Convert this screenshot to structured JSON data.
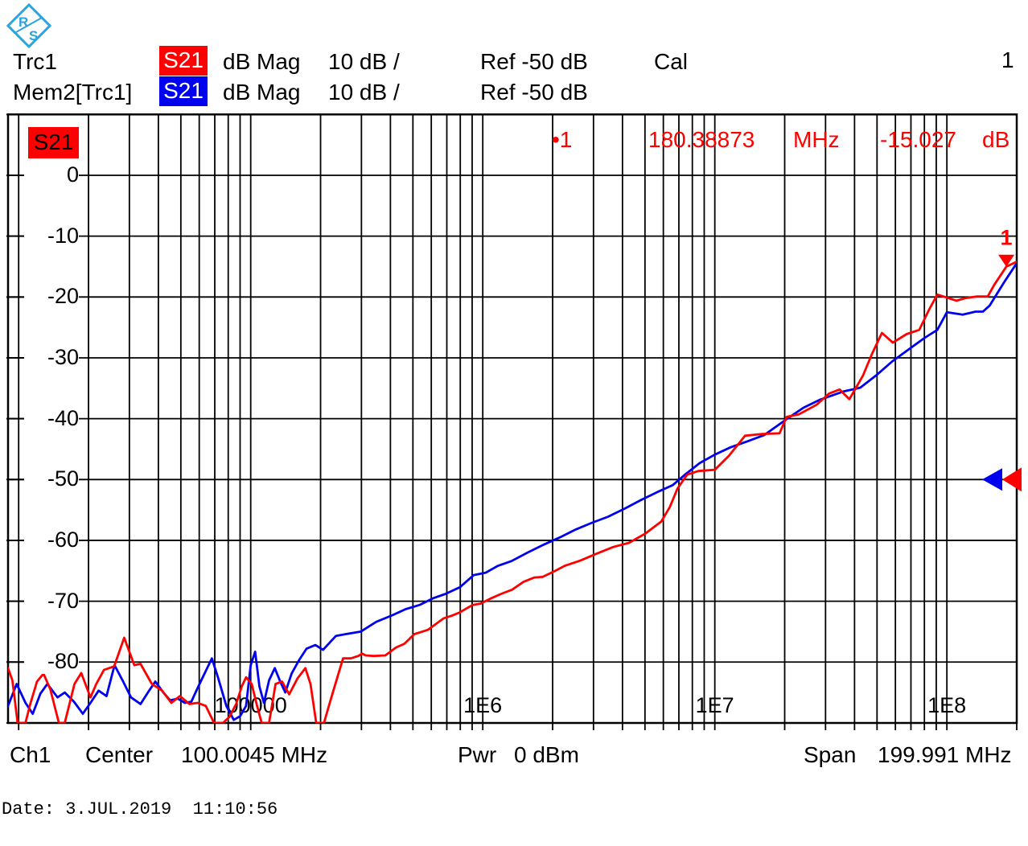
{
  "logo": {
    "name": "rohde-schwarz-logo",
    "color": "#2aa4dc"
  },
  "header": {
    "window_number": "1",
    "traces": [
      {
        "label": "Trc1",
        "channel": "S21",
        "badge_bg": "#ff0000",
        "format": "dB Mag",
        "scale": "10 dB /",
        "ref": "Ref -50 dB",
        "cal": "Cal"
      },
      {
        "label": "Mem2[Trc1]",
        "channel": "S21",
        "badge_bg": "#0000f0",
        "format": "dB Mag",
        "scale": "10 dB /",
        "ref": "Ref -50 dB",
        "cal": ""
      }
    ]
  },
  "trace_badge": {
    "label": "S21",
    "bg": "#ff0000"
  },
  "marker_readout": {
    "marker_label": "•1",
    "frequency": "180.38873",
    "freq_unit": "MHz",
    "value": "-15.027",
    "value_unit": "dB",
    "color": "#ff0000"
  },
  "footer": {
    "channel": "Ch1",
    "center_label": "Center",
    "center_value": "100.0045 MHz",
    "power_label": "Pwr",
    "power_value": "0 dBm",
    "span_label": "Span",
    "span_value": "199.991 MHz"
  },
  "date_line": "Date: 3.JUL.2019  11:10:56",
  "chart_data": {
    "type": "line",
    "title": "",
    "x_axis": {
      "scale": "log",
      "unit": "Hz",
      "min": 9000,
      "max": 200000000,
      "decade_labels": [
        {
          "value": 100000,
          "label": "100000"
        },
        {
          "value": 1000000,
          "label": "1E6"
        },
        {
          "value": 10000000,
          "label": "1E7"
        },
        {
          "value": 100000000,
          "label": "1E8"
        }
      ]
    },
    "y_axis": {
      "unit": "dB",
      "min": -90,
      "max": 10,
      "step": 10,
      "ref": -50,
      "tick_labels": [
        "0",
        "-10",
        "-20",
        "-30",
        "-40",
        "-50",
        "-60",
        "-70",
        "-80"
      ]
    },
    "grid": true,
    "marker": {
      "number": "1",
      "freq": 180388730,
      "value_db": -15.027,
      "color": "#ff0000"
    },
    "ref_arrows": [
      {
        "color": "#0000f0"
      },
      {
        "color": "#ff0000"
      }
    ],
    "series": [
      {
        "name": "Mem2[Trc1]",
        "color": "#0000f0",
        "points": [
          [
            9000,
            -87.2
          ],
          [
            9800,
            -83.6
          ],
          [
            10700,
            -86.7
          ],
          [
            11500,
            -88.5
          ],
          [
            12400,
            -85.2
          ],
          [
            13300,
            -83.6
          ],
          [
            14700,
            -85.8
          ],
          [
            15800,
            -85.0
          ],
          [
            17300,
            -86.5
          ],
          [
            18900,
            -88.5
          ],
          [
            20400,
            -86.7
          ],
          [
            22100,
            -84.7
          ],
          [
            23900,
            -85.6
          ],
          [
            25900,
            -80.5
          ],
          [
            28200,
            -83.2
          ],
          [
            30500,
            -85.8
          ],
          [
            33500,
            -86.9
          ],
          [
            36500,
            -84.7
          ],
          [
            38800,
            -83.2
          ],
          [
            42000,
            -85.0
          ],
          [
            45000,
            -86.3
          ],
          [
            48500,
            -86.0
          ],
          [
            52000,
            -86.7
          ],
          [
            55500,
            -86.5
          ],
          [
            59500,
            -84.0
          ],
          [
            68000,
            -79.4
          ],
          [
            72500,
            -82.7
          ],
          [
            78500,
            -87.2
          ],
          [
            84500,
            -89.5
          ],
          [
            90000,
            -88.9
          ],
          [
            95500,
            -87.2
          ],
          [
            100000,
            -80.5
          ],
          [
            104500,
            -78.3
          ],
          [
            109000,
            -84.0
          ],
          [
            114000,
            -86.7
          ],
          [
            120000,
            -83.0
          ],
          [
            127000,
            -81.0
          ],
          [
            134000,
            -83.2
          ],
          [
            141000,
            -85.0
          ],
          [
            150000,
            -81.9
          ],
          [
            161500,
            -79.7
          ],
          [
            174000,
            -77.8
          ],
          [
            190000,
            -77.2
          ],
          [
            205000,
            -78.0
          ],
          [
            233000,
            -75.7
          ],
          [
            257000,
            -75.4
          ],
          [
            298000,
            -75.0
          ],
          [
            347000,
            -73.4
          ],
          [
            408000,
            -72.3
          ],
          [
            465000,
            -71.3
          ],
          [
            535000,
            -70.6
          ],
          [
            612000,
            -69.5
          ],
          [
            691000,
            -68.8
          ],
          [
            797000,
            -67.7
          ],
          [
            915000,
            -65.7
          ],
          [
            1030000,
            -65.3
          ],
          [
            1160000,
            -64.2
          ],
          [
            1330000,
            -63.4
          ],
          [
            1560000,
            -62.0
          ],
          [
            1830000,
            -60.7
          ],
          [
            2150000,
            -59.5
          ],
          [
            2520000,
            -58.2
          ],
          [
            2960000,
            -57.1
          ],
          [
            3470000,
            -56.1
          ],
          [
            4080000,
            -54.8
          ],
          [
            4790000,
            -53.4
          ],
          [
            5620000,
            -52.1
          ],
          [
            6600000,
            -50.9
          ],
          [
            7380000,
            -49.3
          ],
          [
            8600000,
            -47.3
          ],
          [
            10000000,
            -45.9
          ],
          [
            11700000,
            -44.7
          ],
          [
            13900000,
            -43.7
          ],
          [
            16300000,
            -42.7
          ],
          [
            20700000,
            -39.9
          ],
          [
            24100000,
            -38.2
          ],
          [
            28300000,
            -36.9
          ],
          [
            31900000,
            -36.2
          ],
          [
            36000000,
            -35.5
          ],
          [
            42300000,
            -34.9
          ],
          [
            49500000,
            -32.9
          ],
          [
            58100000,
            -30.6
          ],
          [
            68500000,
            -28.6
          ],
          [
            80300000,
            -26.7
          ],
          [
            91000000,
            -25.4
          ],
          [
            100000000,
            -22.5
          ],
          [
            117000000,
            -22.9
          ],
          [
            133000000,
            -22.4
          ],
          [
            143000000,
            -22.4
          ],
          [
            153000000,
            -21.4
          ],
          [
            177000000,
            -17.5
          ],
          [
            198000000,
            -14.7
          ],
          [
            200000000,
            -14.3
          ]
        ]
      },
      {
        "name": "Trc1",
        "color": "#ff0000",
        "points": [
          [
            9000,
            -81
          ],
          [
            9400,
            -83
          ],
          [
            9900,
            -90
          ],
          [
            10700,
            -90
          ],
          [
            11200,
            -87
          ],
          [
            12000,
            -83.2
          ],
          [
            12800,
            -81.9
          ],
          [
            13700,
            -84.5
          ],
          [
            14900,
            -90
          ],
          [
            15800,
            -90
          ],
          [
            17400,
            -83.6
          ],
          [
            18600,
            -81.8
          ],
          [
            20400,
            -85.8
          ],
          [
            21600,
            -83.6
          ],
          [
            23300,
            -81.3
          ],
          [
            25800,
            -80.7
          ],
          [
            28500,
            -76.0
          ],
          [
            31500,
            -80.5
          ],
          [
            33500,
            -80.3
          ],
          [
            37500,
            -83.6
          ],
          [
            41500,
            -84.7
          ],
          [
            45500,
            -86.7
          ],
          [
            49500,
            -85.6
          ],
          [
            54500,
            -86.9
          ],
          [
            59000,
            -86.7
          ],
          [
            64000,
            -87.2
          ],
          [
            69500,
            -90
          ],
          [
            76000,
            -90
          ],
          [
            81000,
            -89
          ],
          [
            86500,
            -86.9
          ],
          [
            91500,
            -84.0
          ],
          [
            95500,
            -82.5
          ],
          [
            101000,
            -83.6
          ],
          [
            106500,
            -87.2
          ],
          [
            111500,
            -90
          ],
          [
            120000,
            -90
          ],
          [
            128000,
            -83.6
          ],
          [
            136500,
            -83.2
          ],
          [
            146500,
            -85.3
          ],
          [
            159000,
            -82.7
          ],
          [
            172000,
            -81.0
          ],
          [
            181000,
            -83.6
          ],
          [
            191500,
            -90
          ],
          [
            207000,
            -90
          ],
          [
            218000,
            -87
          ],
          [
            228000,
            -84.5
          ],
          [
            250000,
            -79.4
          ],
          [
            270000,
            -79.4
          ],
          [
            291000,
            -79.0
          ],
          [
            302000,
            -78.6
          ],
          [
            313000,
            -78.9
          ],
          [
            338000,
            -79.0
          ],
          [
            380000,
            -78.9
          ],
          [
            423000,
            -77.6
          ],
          [
            459000,
            -77.0
          ],
          [
            507000,
            -75.4
          ],
          [
            549000,
            -75.0
          ],
          [
            580000,
            -74.7
          ],
          [
            679000,
            -72.8
          ],
          [
            732000,
            -72.4
          ],
          [
            790000,
            -71.9
          ],
          [
            905000,
            -70.6
          ],
          [
            978000,
            -70.4
          ],
          [
            1090000,
            -69.5
          ],
          [
            1200000,
            -68.8
          ],
          [
            1340000,
            -68.1
          ],
          [
            1500000,
            -66.8
          ],
          [
            1670000,
            -66.1
          ],
          [
            1810000,
            -66.0
          ],
          [
            2030000,
            -65.1
          ],
          [
            2250000,
            -64.2
          ],
          [
            2640000,
            -63.3
          ],
          [
            3090000,
            -62.2
          ],
          [
            3640000,
            -61.1
          ],
          [
            4270000,
            -60.4
          ],
          [
            5010000,
            -58.9
          ],
          [
            5880000,
            -56.9
          ],
          [
            6400000,
            -54.5
          ],
          [
            6900000,
            -51.5
          ],
          [
            7600000,
            -49.2
          ],
          [
            8500000,
            -48.6
          ],
          [
            10000000,
            -48.4
          ],
          [
            11500000,
            -46.1
          ],
          [
            13500000,
            -42.8
          ],
          [
            16000000,
            -42.5
          ],
          [
            19000000,
            -42.4
          ],
          [
            20400000,
            -39.7
          ],
          [
            23000000,
            -39.3
          ],
          [
            27500000,
            -37.7
          ],
          [
            31000000,
            -35.9
          ],
          [
            34500000,
            -35.2
          ],
          [
            38000000,
            -36.8
          ],
          [
            43500000,
            -32.9
          ],
          [
            47500000,
            -29.4
          ],
          [
            52500000,
            -25.9
          ],
          [
            58500000,
            -27.5
          ],
          [
            67000000,
            -26.1
          ],
          [
            76000000,
            -25.4
          ],
          [
            84000000,
            -22.0
          ],
          [
            91000000,
            -19.6
          ],
          [
            100000000,
            -20.1
          ],
          [
            110000000,
            -20.6
          ],
          [
            120000000,
            -20.2
          ],
          [
            135000000,
            -19.9
          ],
          [
            150000000,
            -19.9
          ],
          [
            160000000,
            -18.0
          ],
          [
            170000000,
            -16.5
          ],
          [
            180388730,
            -15.0
          ],
          [
            190000000,
            -14.6
          ],
          [
            200000000,
            -14.2
          ]
        ]
      }
    ]
  }
}
